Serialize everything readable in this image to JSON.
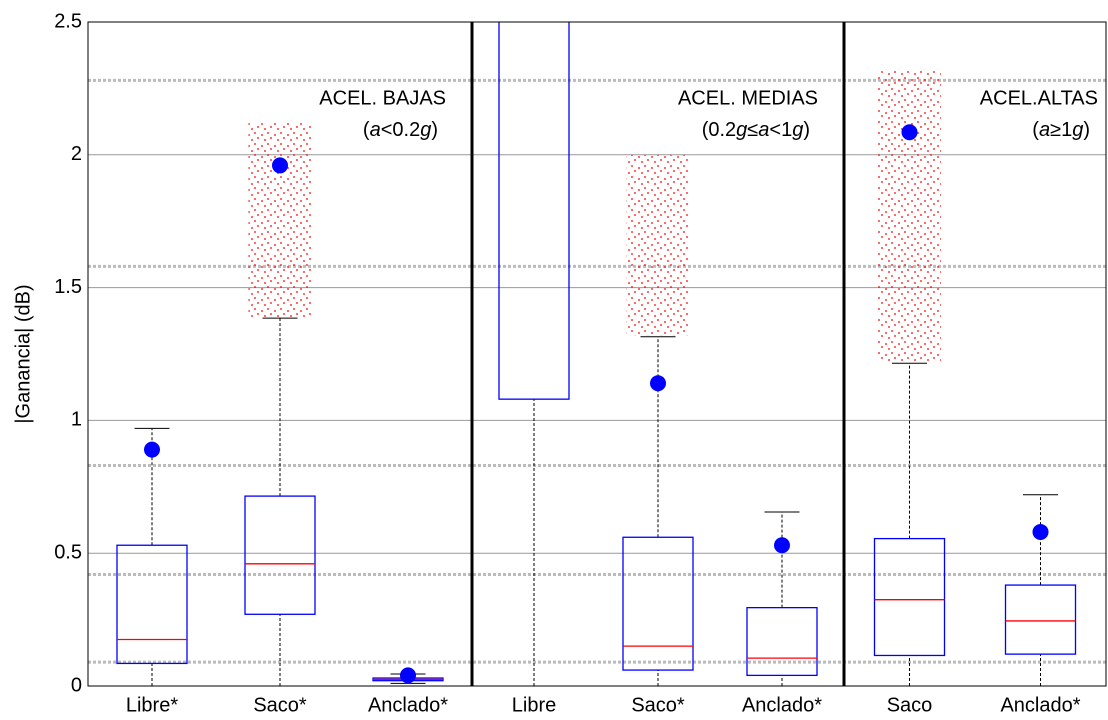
{
  "chart_data": {
    "type": "box",
    "y_label": "|Ganancia| (dB)",
    "ylim": [
      0,
      2.5
    ],
    "yticks": [
      0,
      0.5,
      1,
      1.5,
      2,
      2.5
    ],
    "grid": true,
    "reference_lines": [
      0.09,
      0.42,
      0.83,
      1.58,
      2.28
    ],
    "color": "#0000ff",
    "median_color": "#ff0000",
    "mean_color": "#0000ff",
    "outlier_color": "#ff0000",
    "groups": [
      {
        "annotation": [
          "ACEL. BAJAS",
          "(a<0.2g)"
        ],
        "categories": [
          "Libre*",
          "Saco*",
          "Anclado*"
        ],
        "boxes": [
          {
            "whislo": 0,
            "q1": 0.085,
            "median": 0.175,
            "q3": 0.53,
            "whishi": 0.97,
            "mean": 0.89,
            "outlier_range": null
          },
          {
            "whislo": 0,
            "q1": 0.27,
            "median": 0.46,
            "q3": 0.715,
            "whishi": 1.385,
            "mean": 1.96,
            "outlier_range": [
              1.385,
              2.12
            ]
          },
          {
            "whislo": 0.01,
            "q1": 0.02,
            "median": 0.025,
            "q3": 0.03,
            "whishi": 0.045,
            "mean": 0.04,
            "outlier_range": null
          }
        ]
      },
      {
        "annotation": [
          "ACEL. MEDIAS",
          "(0.2g≤a<1g)"
        ],
        "categories": [
          "Libre",
          "Saco*",
          "Anclado*"
        ],
        "boxes": [
          {
            "whislo": 0,
            "q1": 1.08,
            "median": null,
            "q3": null,
            "whishi": null,
            "mean": null,
            "outlier_range": null
          },
          {
            "whislo": 0,
            "q1": 0.06,
            "median": 0.15,
            "q3": 0.56,
            "whishi": 1.315,
            "mean": 1.14,
            "outlier_range": [
              1.32,
              2.0
            ]
          },
          {
            "whislo": 0,
            "q1": 0.04,
            "median": 0.105,
            "q3": 0.295,
            "whishi": 0.655,
            "mean": 0.53,
            "outlier_range": null
          }
        ]
      },
      {
        "annotation": [
          "ACEL.ALTAS",
          "(a≥1g)"
        ],
        "categories": [
          "Saco",
          "Anclado*"
        ],
        "boxes": [
          {
            "whislo": 0,
            "q1": 0.115,
            "median": 0.325,
            "q3": 0.555,
            "whishi": 1.215,
            "mean": 2.085,
            "outlier_range": [
              1.22,
              2.32
            ]
          },
          {
            "whislo": 0,
            "q1": 0.12,
            "median": 0.245,
            "q3": 0.38,
            "whishi": 0.72,
            "mean": 0.58,
            "outlier_range": null
          }
        ]
      }
    ]
  }
}
